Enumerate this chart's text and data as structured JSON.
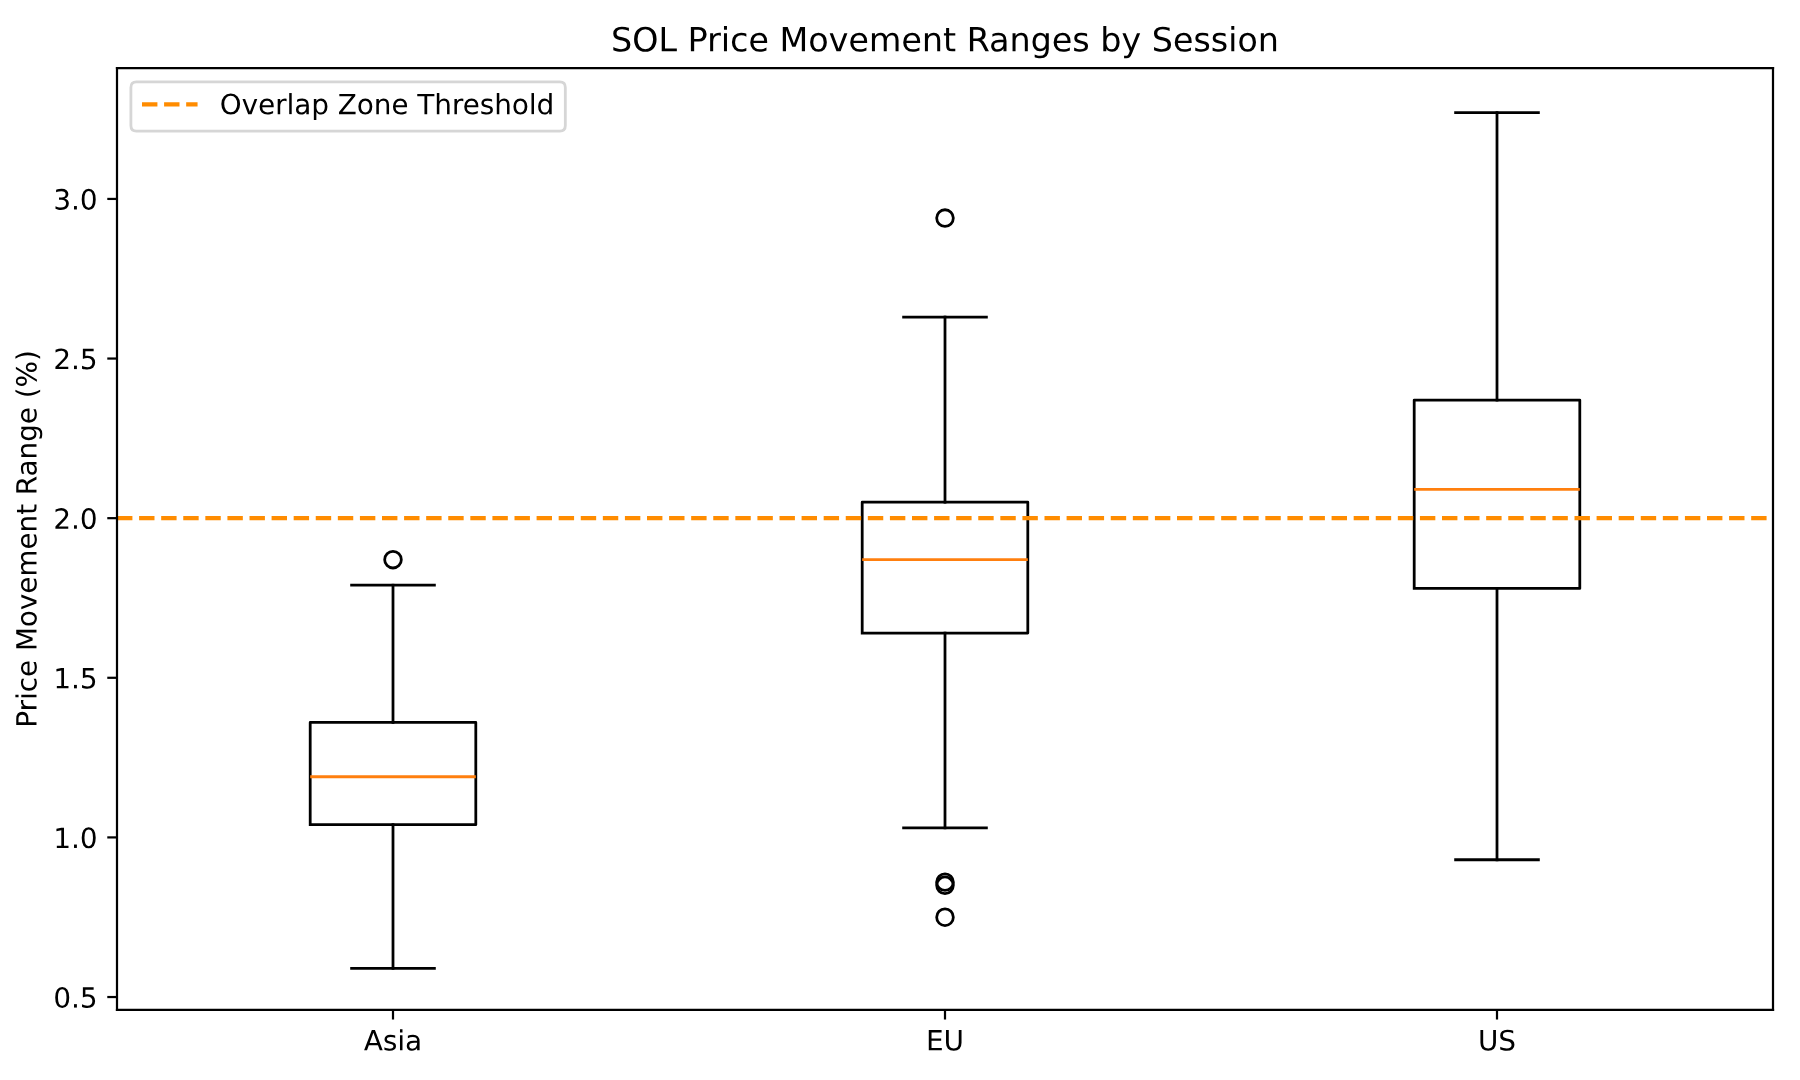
{
  "chart_data": {
    "type": "box",
    "title": "SOL Price Movement Ranges by Session",
    "ylabel": "Price Movement Range (%)",
    "categories": [
      "Asia",
      "EU",
      "US"
    ],
    "boxes": [
      {
        "low": 0.59,
        "q1": 1.04,
        "median": 1.19,
        "q3": 1.36,
        "high": 1.79,
        "outliers": [
          1.87
        ]
      },
      {
        "low": 1.03,
        "q1": 1.64,
        "median": 1.87,
        "q3": 2.05,
        "high": 2.63,
        "outliers": [
          2.94,
          0.86,
          0.85,
          0.75
        ]
      },
      {
        "low": 0.93,
        "q1": 1.78,
        "median": 2.09,
        "q3": 2.37,
        "high": 3.27
      }
    ],
    "ylim": [
      0.46,
      3.41
    ],
    "yticks": [
      0.5,
      {
        "value": 1,
        "label": "1.0"
      },
      1.5,
      {
        "value": 2,
        "label": "2.0"
      },
      2.5,
      {
        "value": 3,
        "label": "3.0"
      }
    ],
    "ref_lines": [
      {
        "axis": "y",
        "value": 2.0,
        "label": "Overlap Zone Threshold",
        "color": "#ff8c00",
        "line_style": "dashed"
      }
    ],
    "legend": "top left",
    "grid": false
  }
}
